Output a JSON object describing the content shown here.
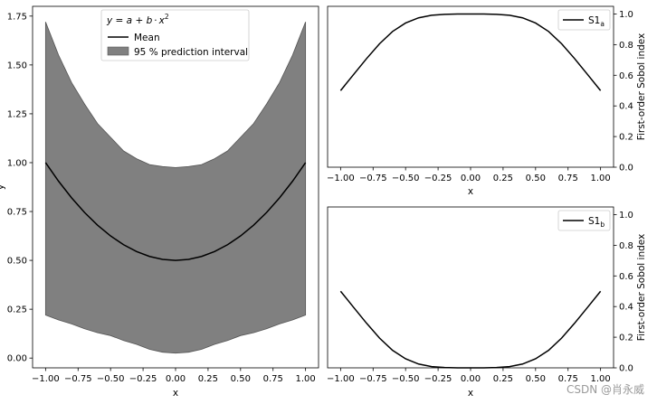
{
  "chart_data": [
    {
      "type": "area",
      "id": "left",
      "title": "",
      "xlabel": "x",
      "ylabel": "y",
      "xlim": [
        -1.1,
        1.1
      ],
      "ylim": [
        -0.05,
        1.8
      ],
      "xticks": [
        -1.0,
        -0.75,
        -0.5,
        -0.25,
        0.0,
        0.25,
        0.5,
        0.75,
        1.0
      ],
      "xtick_labels": [
        "−1.00",
        "−0.75",
        "−0.50",
        "−0.25",
        "0.00",
        "0.25",
        "0.50",
        "0.75",
        "1.00"
      ],
      "yticks": [
        0.0,
        0.25,
        0.5,
        0.75,
        1.0,
        1.25,
        1.5,
        1.75
      ],
      "ytick_labels": [
        "0.00",
        "0.25",
        "0.50",
        "0.75",
        "1.00",
        "1.25",
        "1.50",
        "1.75"
      ],
      "legend": {
        "placement": "top-center",
        "title_parts": {
          "lhs": "y = a + b",
          "op": "·",
          "var": "x",
          "exp": "2"
        },
        "entries": [
          "Mean",
          "95 % prediction interval"
        ]
      },
      "x": [
        -1.0,
        -0.9,
        -0.8,
        -0.7,
        -0.6,
        -0.5,
        -0.4,
        -0.3,
        -0.2,
        -0.1,
        0.0,
        0.1,
        0.2,
        0.3,
        0.4,
        0.5,
        0.6,
        0.7,
        0.8,
        0.9,
        1.0
      ],
      "series": [
        {
          "name": "Mean",
          "kind": "line",
          "color": "#000000",
          "values": [
            1.0,
            0.905,
            0.82,
            0.745,
            0.68,
            0.625,
            0.58,
            0.545,
            0.52,
            0.505,
            0.5,
            0.505,
            0.52,
            0.545,
            0.58,
            0.625,
            0.68,
            0.745,
            0.82,
            0.905,
            1.0
          ]
        },
        {
          "name": "95 % prediction interval",
          "kind": "band",
          "color": "#808080",
          "upper": [
            1.72,
            1.55,
            1.41,
            1.3,
            1.2,
            1.13,
            1.06,
            1.02,
            0.99,
            0.98,
            0.975,
            0.98,
            0.99,
            1.02,
            1.06,
            1.13,
            1.2,
            1.3,
            1.41,
            1.55,
            1.72
          ],
          "lower": [
            0.22,
            0.195,
            0.175,
            0.15,
            0.13,
            0.115,
            0.09,
            0.07,
            0.045,
            0.03,
            0.025,
            0.03,
            0.045,
            0.07,
            0.09,
            0.115,
            0.13,
            0.15,
            0.175,
            0.195,
            0.22
          ]
        }
      ]
    },
    {
      "type": "line",
      "id": "top-right",
      "title": "",
      "xlabel": "x",
      "ylabel": "First-order Sobol index",
      "yaxis_side": "right",
      "xlim": [
        -1.1,
        1.1
      ],
      "ylim": [
        0.0,
        1.05
      ],
      "xticks": [
        -1.0,
        -0.75,
        -0.5,
        -0.25,
        0.0,
        0.25,
        0.5,
        0.75,
        1.0
      ],
      "xtick_labels": [
        "−1.00",
        "−0.75",
        "−0.50",
        "−0.25",
        "0.00",
        "0.25",
        "0.50",
        "0.75",
        "1.00"
      ],
      "yticks": [
        0.0,
        0.2,
        0.4,
        0.6,
        0.8,
        1.0
      ],
      "ytick_labels": [
        "0.0",
        "0.2",
        "0.4",
        "0.6",
        "0.8",
        "1.0"
      ],
      "legend": {
        "placement": "top-right",
        "base": "S1",
        "sub": "a"
      },
      "x": [
        -1.0,
        -0.9,
        -0.8,
        -0.7,
        -0.6,
        -0.5,
        -0.4,
        -0.3,
        -0.2,
        -0.1,
        0.0,
        0.1,
        0.2,
        0.3,
        0.4,
        0.5,
        0.6,
        0.7,
        0.8,
        0.9,
        1.0
      ],
      "series": [
        {
          "name": "S1a",
          "color": "#000000",
          "values": [
            0.5,
            0.605,
            0.709,
            0.806,
            0.886,
            0.941,
            0.975,
            0.992,
            0.998,
            1.0,
            1.0,
            1.0,
            0.998,
            0.992,
            0.975,
            0.941,
            0.886,
            0.806,
            0.709,
            0.605,
            0.5
          ]
        }
      ]
    },
    {
      "type": "line",
      "id": "bottom-right",
      "title": "",
      "xlabel": "x",
      "ylabel": "First-order Sobol index",
      "yaxis_side": "right",
      "xlim": [
        -1.1,
        1.1
      ],
      "ylim": [
        0.0,
        1.05
      ],
      "xticks": [
        -1.0,
        -0.75,
        -0.5,
        -0.25,
        0.0,
        0.25,
        0.5,
        0.75,
        1.0
      ],
      "xtick_labels": [
        "−1.00",
        "−0.75",
        "−0.50",
        "−0.25",
        "0.00",
        "0.25",
        "0.50",
        "0.75",
        "1.00"
      ],
      "yticks": [
        0.0,
        0.2,
        0.4,
        0.6,
        0.8,
        1.0
      ],
      "ytick_labels": [
        "0.0",
        "0.2",
        "0.4",
        "0.6",
        "0.8",
        "1.0"
      ],
      "legend": {
        "placement": "top-right",
        "base": "S1",
        "sub": "b"
      },
      "x": [
        -1.0,
        -0.9,
        -0.8,
        -0.7,
        -0.6,
        -0.5,
        -0.4,
        -0.3,
        -0.2,
        -0.1,
        0.0,
        0.1,
        0.2,
        0.3,
        0.4,
        0.5,
        0.6,
        0.7,
        0.8,
        0.9,
        1.0
      ],
      "series": [
        {
          "name": "S1b",
          "color": "#000000",
          "values": [
            0.5,
            0.395,
            0.291,
            0.194,
            0.114,
            0.059,
            0.025,
            0.008,
            0.002,
            0.0,
            0.0,
            0.0,
            0.002,
            0.008,
            0.025,
            0.059,
            0.114,
            0.194,
            0.291,
            0.395,
            0.5
          ]
        }
      ]
    }
  ],
  "watermark": "CSDN @肖永威"
}
